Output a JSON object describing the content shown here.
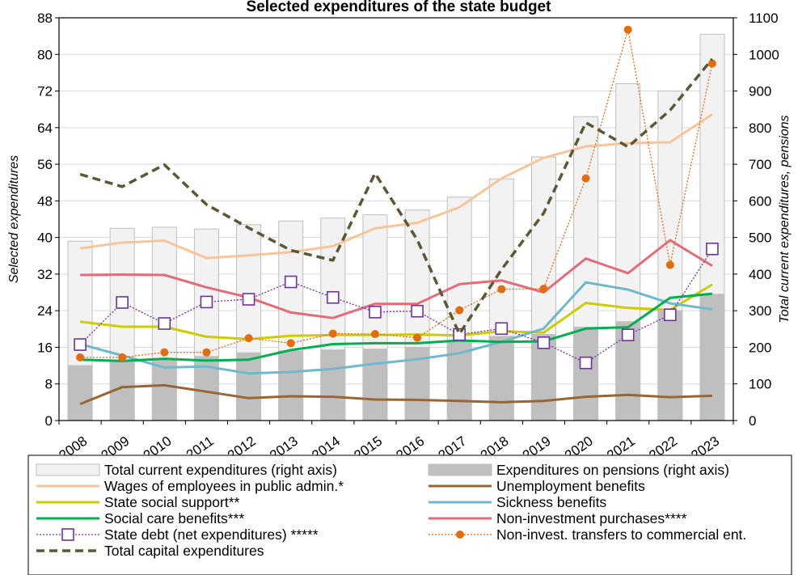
{
  "chart_data": {
    "type": "bar+line",
    "title_visible_fragment": "Selected expenditures of the state budget",
    "categories": [
      "2008",
      "2009",
      "2010",
      "2011",
      "2012",
      "2013",
      "2014",
      "2015",
      "2016",
      "2017",
      "2018",
      "2019",
      "2020",
      "2021",
      "2022",
      "2023"
    ],
    "y_left": {
      "label": "Selected expenditures",
      "ylim": [
        0,
        88
      ],
      "ticks": [
        0,
        8,
        16,
        24,
        32,
        40,
        48,
        56,
        64,
        72,
        80,
        88
      ]
    },
    "y_right": {
      "label": "Total current expenditures, pensions",
      "ylim": [
        0,
        1100
      ],
      "ticks": [
        0,
        100,
        200,
        300,
        400,
        500,
        600,
        700,
        800,
        900,
        1000,
        1100
      ]
    },
    "bars": [
      {
        "name": "Total current expenditures (right axis)",
        "axis": "right",
        "color": "#f2f2f2",
        "stroke": "#bfbfbf",
        "values": [
          490,
          525,
          528,
          523,
          535,
          545,
          553,
          562,
          575,
          610,
          660,
          720,
          830,
          920,
          900,
          1055
        ]
      },
      {
        "name": "Expenditures on pensions (right axis)",
        "axis": "right",
        "color": "#bfbfbf",
        "stroke": "#bfbfbf",
        "values": [
          150,
          160,
          165,
          175,
          185,
          190,
          193,
          195,
          200,
          215,
          230,
          235,
          255,
          270,
          300,
          345
        ]
      }
    ],
    "series": [
      {
        "name": "Wages of employees in public admin.*",
        "axis": "left",
        "color": "#f8c49a",
        "style": "solid",
        "values": [
          37.6,
          38.9,
          39.3,
          35.5,
          36.1,
          36.8,
          38.1,
          42.0,
          43.2,
          46.6,
          52.9,
          57.4,
          59.9,
          60.6,
          60.8,
          66.9
        ]
      },
      {
        "name": "Unemployment benefits",
        "axis": "left",
        "color": "#996633",
        "style": "solid",
        "values": [
          3.6,
          7.3,
          7.7,
          6.3,
          4.9,
          5.3,
          5.2,
          4.6,
          4.5,
          4.3,
          4.0,
          4.3,
          5.2,
          5.6,
          5.1,
          5.4
        ]
      },
      {
        "name": "State social support**",
        "axis": "left",
        "color": "#cccc00",
        "style": "solid",
        "values": [
          21.6,
          20.5,
          20.5,
          18.3,
          17.8,
          18.5,
          18.7,
          18.7,
          18.8,
          18.6,
          19.5,
          19.2,
          25.7,
          24.6,
          24.2,
          29.7
        ]
      },
      {
        "name": "Sickness benefits",
        "axis": "left",
        "color": "#70b8cc",
        "style": "solid",
        "values": [
          16.7,
          14.2,
          11.6,
          11.8,
          10.3,
          10.6,
          11.3,
          12.4,
          13.4,
          14.7,
          17.2,
          20.1,
          30.2,
          28.6,
          25.6,
          24.3
        ]
      },
      {
        "name": "Social care benefits***",
        "axis": "left",
        "color": "#00b050",
        "style": "solid",
        "values": [
          13.3,
          13.0,
          13.5,
          13.1,
          13.3,
          15.4,
          16.7,
          16.9,
          16.9,
          17.5,
          17.2,
          17.3,
          20.1,
          20.4,
          26.8,
          27.7
        ]
      },
      {
        "name": "Non-investment purchases****",
        "axis": "left",
        "color": "#e46c78",
        "style": "solid",
        "values": [
          31.8,
          31.9,
          31.8,
          29.1,
          26.9,
          23.6,
          22.4,
          25.5,
          25.5,
          29.8,
          30.6,
          28.0,
          35.4,
          32.2,
          39.4,
          33.8
        ]
      },
      {
        "name": "State debt (net expenditures) *****",
        "axis": "left",
        "color": "#7030a0",
        "style": "dotted",
        "marker": "open-square",
        "values": [
          16.6,
          25.8,
          21.2,
          25.9,
          26.5,
          30.3,
          26.9,
          23.7,
          23.9,
          18.8,
          20.1,
          17.0,
          12.6,
          18.7,
          23.1,
          37.5
        ]
      },
      {
        "name": "Non-invest. transfers to commercial ent.",
        "axis": "left",
        "color": "#e46c0a",
        "style": "dotted",
        "marker": "filled-circle",
        "values": [
          13.8,
          13.8,
          14.9,
          14.9,
          18.0,
          16.9,
          19.0,
          18.9,
          18.1,
          24.1,
          28.7,
          28.8,
          52.9,
          85.4,
          34.0,
          78.0
        ]
      },
      {
        "name": "Total capital expenditures",
        "axis": "left",
        "color": "#595933",
        "style": "dashed",
        "values": [
          53.8,
          51.1,
          55.9,
          47.2,
          42.1,
          37.2,
          35.0,
          54.0,
          39.5,
          18.9,
          33.0,
          45.3,
          65.1,
          59.8,
          67.8,
          79.0
        ]
      }
    ],
    "legend_position": "bottom",
    "grid": "horizontal"
  }
}
